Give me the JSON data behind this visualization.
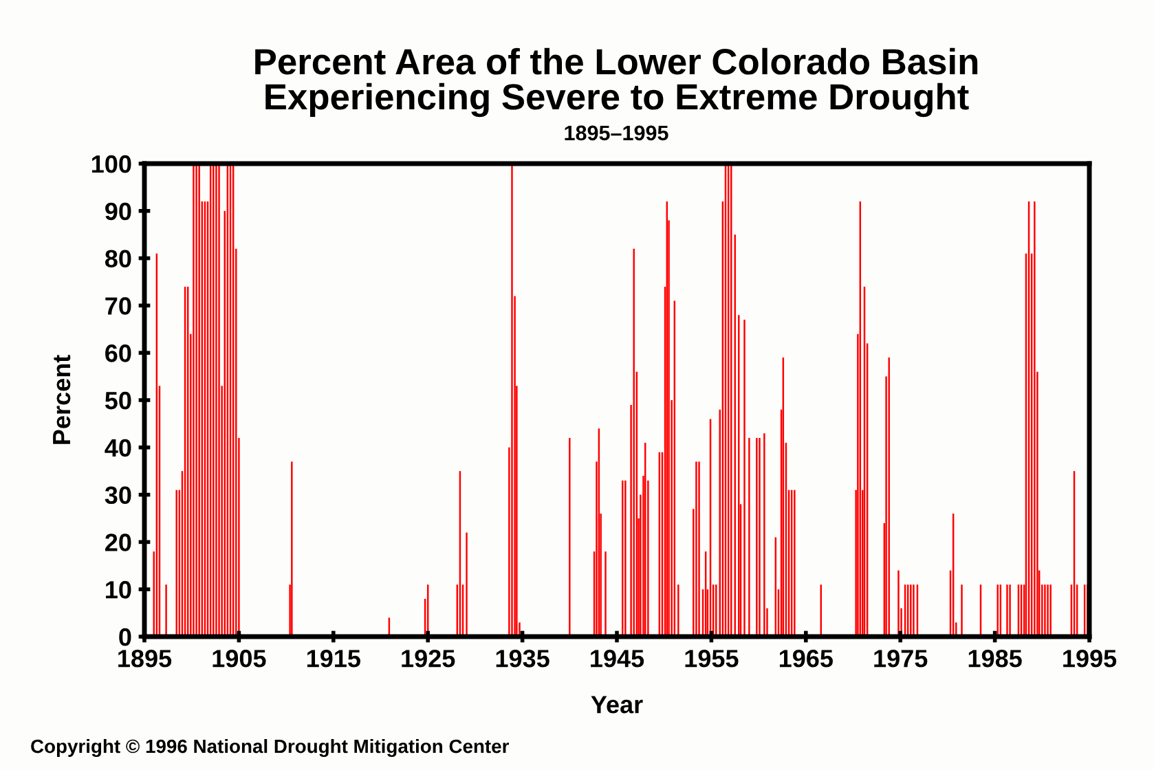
{
  "chart_data": {
    "type": "bar",
    "title": "Percent Area of the Lower Colorado Basin\nExperiencing Severe to Extreme Drought",
    "subtitle": "1895–1995",
    "xlabel": "Year",
    "ylabel": "Percent",
    "annotations": [
      "Copyright © 1996 National Drought Mitigation Center"
    ],
    "x": [
      1896.0,
      1896.3,
      1896.6,
      1897.3,
      1898.4,
      1898.7,
      1899.0,
      1899.3,
      1899.6,
      1899.9,
      1900.2,
      1900.5,
      1900.8,
      1901.1,
      1901.4,
      1901.7,
      1902.0,
      1902.3,
      1902.6,
      1902.9,
      1903.2,
      1903.5,
      1903.8,
      1904.1,
      1904.4,
      1904.7,
      1905.0,
      1910.4,
      1910.6,
      1920.9,
      1924.7,
      1925.0,
      1928.1,
      1928.4,
      1928.7,
      1929.1,
      1933.6,
      1933.9,
      1934.2,
      1934.4,
      1934.7,
      1940.0,
      1942.6,
      1942.85,
      1943.1,
      1943.3,
      1943.8,
      1945.6,
      1945.9,
      1946.5,
      1946.8,
      1947.1,
      1947.3,
      1947.5,
      1947.8,
      1948.0,
      1948.3,
      1949.5,
      1949.8,
      1950.1,
      1950.3,
      1950.5,
      1950.8,
      1951.1,
      1951.5,
      1953.1,
      1953.4,
      1953.7,
      1954.1,
      1954.4,
      1954.6,
      1954.9,
      1955.2,
      1955.5,
      1955.9,
      1956.2,
      1956.5,
      1956.8,
      1957.1,
      1957.5,
      1957.9,
      1958.1,
      1958.5,
      1959.0,
      1959.8,
      1960.1,
      1960.6,
      1960.9,
      1961.8,
      1962.1,
      1962.4,
      1962.6,
      1962.9,
      1963.2,
      1963.5,
      1963.8,
      1966.6,
      1970.3,
      1970.5,
      1970.75,
      1971.0,
      1971.2,
      1971.5,
      1973.3,
      1973.5,
      1973.8,
      1974.8,
      1975.1,
      1975.5,
      1975.8,
      1976.1,
      1976.4,
      1976.8,
      1980.3,
      1980.6,
      1980.9,
      1981.5,
      1983.5,
      1985.3,
      1985.6,
      1986.3,
      1986.6,
      1987.5,
      1987.8,
      1988.1,
      1988.3,
      1988.6,
      1988.9,
      1989.2,
      1989.5,
      1989.7,
      1990.0,
      1990.3,
      1990.6,
      1990.9,
      1993.1,
      1993.4,
      1993.7,
      1994.5,
      1994.8
    ],
    "values": [
      18,
      81,
      53,
      11,
      31,
      31,
      35,
      74,
      74,
      64,
      100,
      100,
      100,
      92,
      92,
      92,
      100,
      100,
      100,
      100,
      53,
      90,
      100,
      100,
      100,
      82,
      42,
      11,
      37,
      4,
      8,
      11,
      11,
      35,
      11,
      22,
      40,
      100,
      72,
      53,
      3,
      42,
      18,
      37,
      44,
      26,
      18,
      33,
      33,
      49,
      82,
      56,
      25,
      30,
      34,
      41,
      33,
      39,
      39,
      74,
      92,
      88,
      50,
      71,
      11,
      27,
      37,
      37,
      10,
      18,
      10,
      46,
      11,
      11,
      48,
      92,
      100,
      100,
      100,
      85,
      68,
      28,
      67,
      42,
      42,
      42,
      43,
      6,
      21,
      10,
      48,
      59,
      41,
      31,
      31,
      31,
      11,
      31,
      64,
      92,
      31,
      74,
      62,
      24,
      55,
      59,
      14,
      6,
      11,
      11,
      11,
      11,
      11,
      14,
      26,
      3,
      11,
      11,
      11,
      11,
      11,
      11,
      11,
      11,
      11,
      81,
      92,
      81,
      92,
      56,
      14,
      11,
      11,
      11,
      11,
      11,
      35,
      11,
      11,
      11
    ],
    "color": "#ff0000",
    "xlim": [
      1895,
      1995
    ],
    "ylim": [
      0,
      100
    ],
    "xticks": [
      1895,
      1905,
      1915,
      1925,
      1935,
      1945,
      1955,
      1965,
      1975,
      1985,
      1995
    ],
    "yticks": [
      0,
      10,
      20,
      30,
      40,
      50,
      60,
      70,
      80,
      90,
      100
    ],
    "grid": false
  }
}
